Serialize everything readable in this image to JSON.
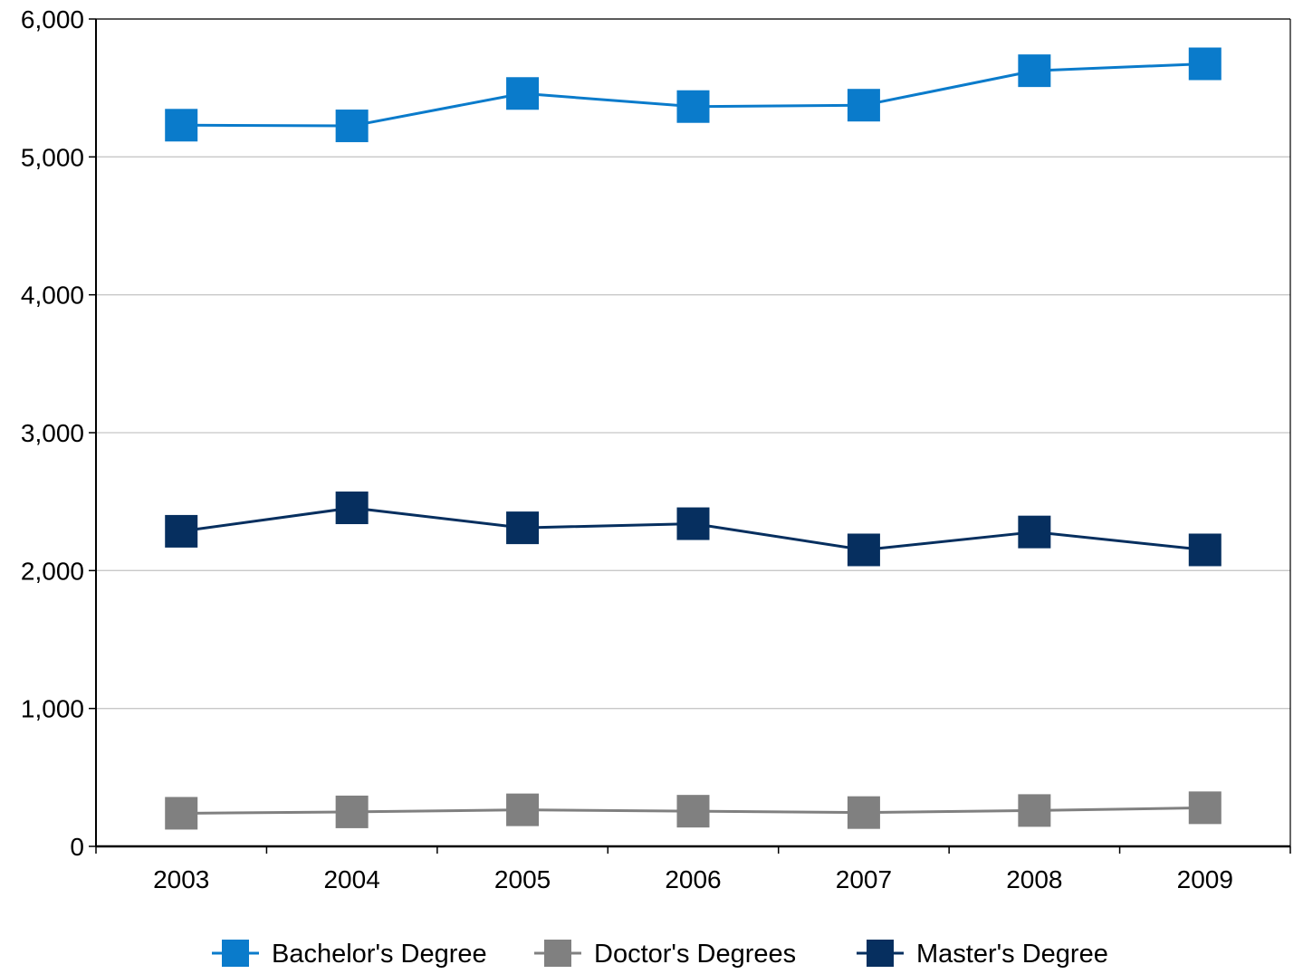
{
  "chart_data": {
    "type": "line",
    "categories": [
      "2003",
      "2004",
      "2005",
      "2006",
      "2007",
      "2008",
      "2009"
    ],
    "ylim": [
      0,
      6000
    ],
    "yticks": [
      0,
      1000,
      2000,
      3000,
      4000,
      5000,
      6000
    ],
    "ytick_labels": [
      "0",
      "1,000",
      "2,000",
      "3,000",
      "4,000",
      "5,000",
      "6,000"
    ],
    "grid": true,
    "legend_position": "bottom",
    "marker": "square",
    "series": [
      {
        "name": "Bachelor's Degree",
        "color": "#0A7BCB",
        "values": [
          5230,
          5225,
          5460,
          5365,
          5375,
          5625,
          5675
        ]
      },
      {
        "name": "Doctor's Degrees",
        "color": "#808080",
        "values": [
          240,
          250,
          265,
          255,
          245,
          260,
          280
        ]
      },
      {
        "name": "Master's Degree",
        "color": "#062F5F",
        "values": [
          2285,
          2455,
          2310,
          2340,
          2150,
          2280,
          2150
        ]
      }
    ]
  }
}
